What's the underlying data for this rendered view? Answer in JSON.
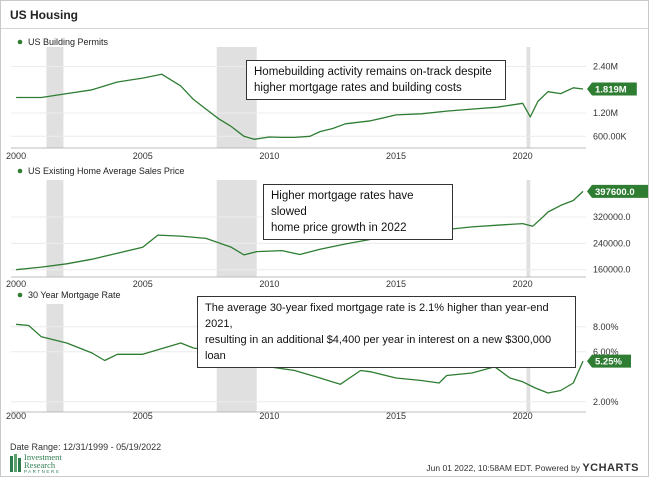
{
  "page": {
    "title": "US Housing"
  },
  "annotations": {
    "permits": [
      "Homebuilding activity remains on-track despite",
      "higher mortgage rates and building costs"
    ],
    "price": [
      "Higher mortgage rates have slowed",
      "home price growth in 2022"
    ],
    "rate": [
      "The average 30-year fixed mortgage rate is 2.1% higher than year-end 2021,",
      "resulting in an additional $4,400 per year in interest on a new $300,000 loan"
    ]
  },
  "footer": {
    "date_range": "Date Range: 12/31/1999 - 05/19/2022",
    "stamp": "Jun 01 2022, 10:58AM EDT. Powered by",
    "brand": "YCHARTS"
  },
  "logo": {
    "line1": "Investment",
    "line2": "Research",
    "line3": "PARTNERS"
  },
  "colors": {
    "series": "#2e7d32",
    "recession": "#e0e0e0",
    "badge": "#2e7d32"
  },
  "chart_data": [
    {
      "type": "line",
      "series": [
        {
          "name": "US Building Permits"
        }
      ],
      "x": [
        2000.0,
        2001.0,
        2002.0,
        2003.0,
        2004.0,
        2005.0,
        2005.75,
        2006.5,
        2007.0,
        2007.5,
        2008.0,
        2008.5,
        2009.0,
        2009.4,
        2010.0,
        2010.5,
        2011.0,
        2011.6,
        2012.0,
        2012.5,
        2013.0,
        2014.0,
        2015.0,
        2016.0,
        2017.0,
        2018.0,
        2019.0,
        2020.0,
        2020.3,
        2020.6,
        2021.0,
        2021.5,
        2022.0,
        2022.38
      ],
      "y": [
        1.6,
        1.6,
        1.7,
        1.8,
        2.0,
        2.1,
        2.2,
        1.9,
        1.55,
        1.3,
        1.05,
        0.85,
        0.6,
        0.52,
        0.58,
        0.57,
        0.57,
        0.6,
        0.72,
        0.8,
        0.92,
        1.0,
        1.15,
        1.18,
        1.25,
        1.3,
        1.35,
        1.45,
        1.1,
        1.5,
        1.75,
        1.7,
        1.85,
        1.819
      ],
      "ylim": [
        0.4,
        2.8
      ],
      "yticks": [
        0.6,
        1.2,
        2.4
      ],
      "ytick_labels": [
        "600.00K",
        "1.20M",
        "2.40M"
      ],
      "last_value_label": "1.819M",
      "xticks": [
        2000,
        2005,
        2010,
        2015,
        2020
      ],
      "recessions": [
        [
          2001.2,
          2001.87
        ],
        [
          2007.92,
          2009.5
        ],
        [
          2020.15,
          2020.3
        ]
      ]
    },
    {
      "type": "line",
      "series": [
        {
          "name": "US Existing Home Average Sales Price"
        }
      ],
      "x": [
        2000.0,
        2001.0,
        2002.0,
        2003.0,
        2004.0,
        2005.0,
        2005.6,
        2006.5,
        2007.5,
        2008.5,
        2009.0,
        2009.5,
        2010.5,
        2011.2,
        2012.0,
        2013.0,
        2014.0,
        2015.0,
        2016.0,
        2017.0,
        2018.0,
        2019.0,
        2020.0,
        2020.4,
        2020.8,
        2021.0,
        2021.5,
        2022.0,
        2022.38
      ],
      "y": [
        160000,
        168000,
        178000,
        192000,
        210000,
        228000,
        265000,
        262000,
        255000,
        228000,
        205000,
        215000,
        218000,
        206000,
        222000,
        238000,
        252000,
        262000,
        272000,
        282000,
        290000,
        295000,
        300000,
        292000,
        320000,
        335000,
        355000,
        370000,
        397600
      ],
      "ylim": [
        150000,
        420000
      ],
      "yticks": [
        160000,
        240000,
        320000
      ],
      "ytick_labels": [
        "160000.0",
        "240000.0",
        "320000.0"
      ],
      "last_value_label": "397600.0",
      "xticks": [
        2000,
        2005,
        2010,
        2015,
        2020
      ],
      "recessions": [
        [
          2001.2,
          2001.87
        ],
        [
          2007.92,
          2009.5
        ],
        [
          2020.15,
          2020.3
        ]
      ]
    },
    {
      "type": "line",
      "series": [
        {
          "name": "30 Year Mortgage Rate"
        }
      ],
      "x": [
        2000.0,
        2000.5,
        2001.0,
        2002.0,
        2003.0,
        2003.5,
        2004.0,
        2005.0,
        2006.0,
        2006.5,
        2007.0,
        2008.0,
        2008.5,
        2009.0,
        2010.0,
        2011.0,
        2012.0,
        2012.8,
        2013.6,
        2014.0,
        2015.0,
        2016.0,
        2016.7,
        2017.0,
        2018.0,
        2018.9,
        2019.5,
        2020.0,
        2020.5,
        2021.0,
        2021.5,
        2022.0,
        2022.38
      ],
      "y": [
        8.2,
        8.1,
        7.2,
        6.7,
        5.9,
        5.3,
        5.8,
        5.8,
        6.4,
        6.7,
        6.3,
        6.0,
        6.4,
        5.0,
        4.8,
        4.5,
        3.9,
        3.4,
        4.5,
        4.4,
        3.9,
        3.7,
        3.5,
        4.1,
        4.3,
        4.8,
        3.9,
        3.6,
        3.1,
        2.7,
        2.9,
        3.5,
        5.25
      ],
      "ylim": [
        1.5,
        9.5
      ],
      "yticks": [
        2,
        6,
        8
      ],
      "ytick_labels": [
        "2.00%",
        "6.00%",
        "8.00%"
      ],
      "last_value_label": "5.25%",
      "xticks": [
        2000,
        2005,
        2010,
        2015,
        2020
      ],
      "recessions": [
        [
          2001.2,
          2001.87
        ],
        [
          2007.92,
          2009.5
        ],
        [
          2020.15,
          2020.3
        ]
      ]
    }
  ]
}
